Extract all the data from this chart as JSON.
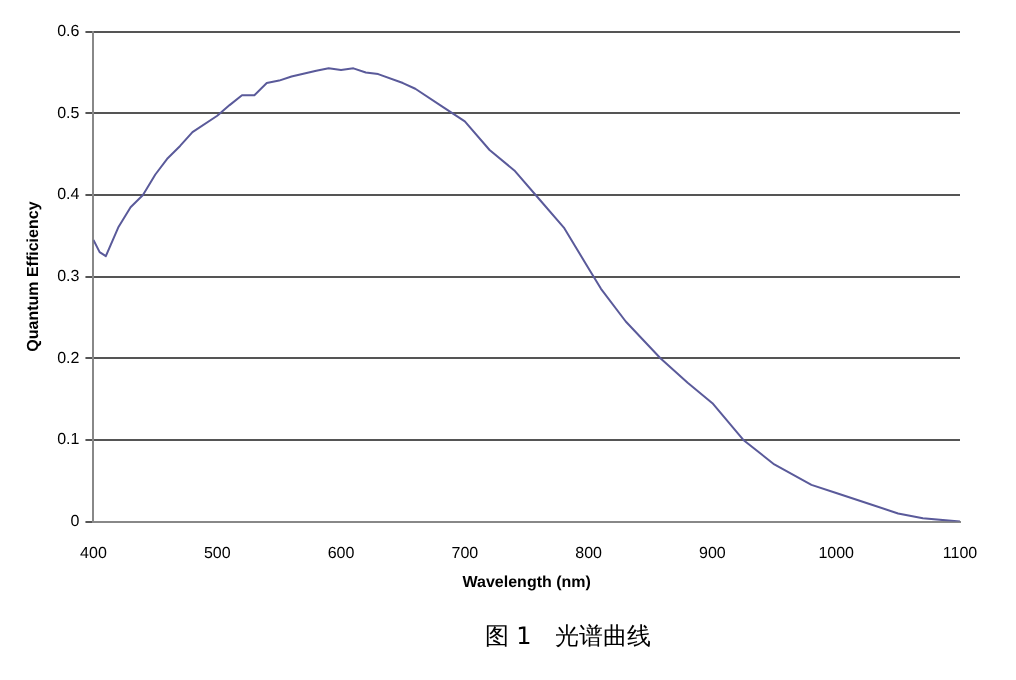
{
  "chart_data": {
    "type": "line",
    "xlabel": "Wavelength (nm)",
    "ylabel": "Quantum Efficiency",
    "annotations": [
      "图 1　光谱曲线"
    ],
    "x": [
      400,
      405,
      410,
      420,
      430,
      440,
      450,
      460,
      470,
      480,
      500,
      510,
      520,
      530,
      540,
      550,
      560,
      580,
      590,
      600,
      610,
      620,
      630,
      650,
      660,
      680,
      700,
      720,
      740,
      760,
      780,
      800,
      810,
      830,
      858,
      880,
      900,
      925,
      950,
      980,
      1000,
      1030,
      1050,
      1070,
      1100
    ],
    "series": [
      {
        "color": "#5a5a9a",
        "values": [
          0.345,
          0.33,
          0.325,
          0.36,
          0.385,
          0.4,
          0.425,
          0.445,
          0.46,
          0.477,
          0.497,
          0.51,
          0.522,
          0.522,
          0.537,
          0.54,
          0.545,
          0.552,
          0.555,
          0.553,
          0.555,
          0.55,
          0.548,
          0.537,
          0.53,
          0.51,
          0.49,
          0.455,
          0.43,
          0.395,
          0.36,
          0.31,
          0.285,
          0.245,
          0.2,
          0.17,
          0.145,
          0.1,
          0.07,
          0.045,
          0.035,
          0.02,
          0.01,
          0.004,
          0
        ]
      }
    ],
    "xlim": [
      400,
      1100
    ],
    "xticks": [
      400,
      500,
      600,
      700,
      800,
      900,
      1000,
      1100
    ],
    "ylim": [
      0,
      0.6
    ],
    "yticks": [
      0,
      0.1,
      0.2,
      0.3,
      0.4,
      0.5,
      0.6
    ],
    "grid": "y",
    "legend": false,
    "marker": "none",
    "line_style": "solid"
  }
}
